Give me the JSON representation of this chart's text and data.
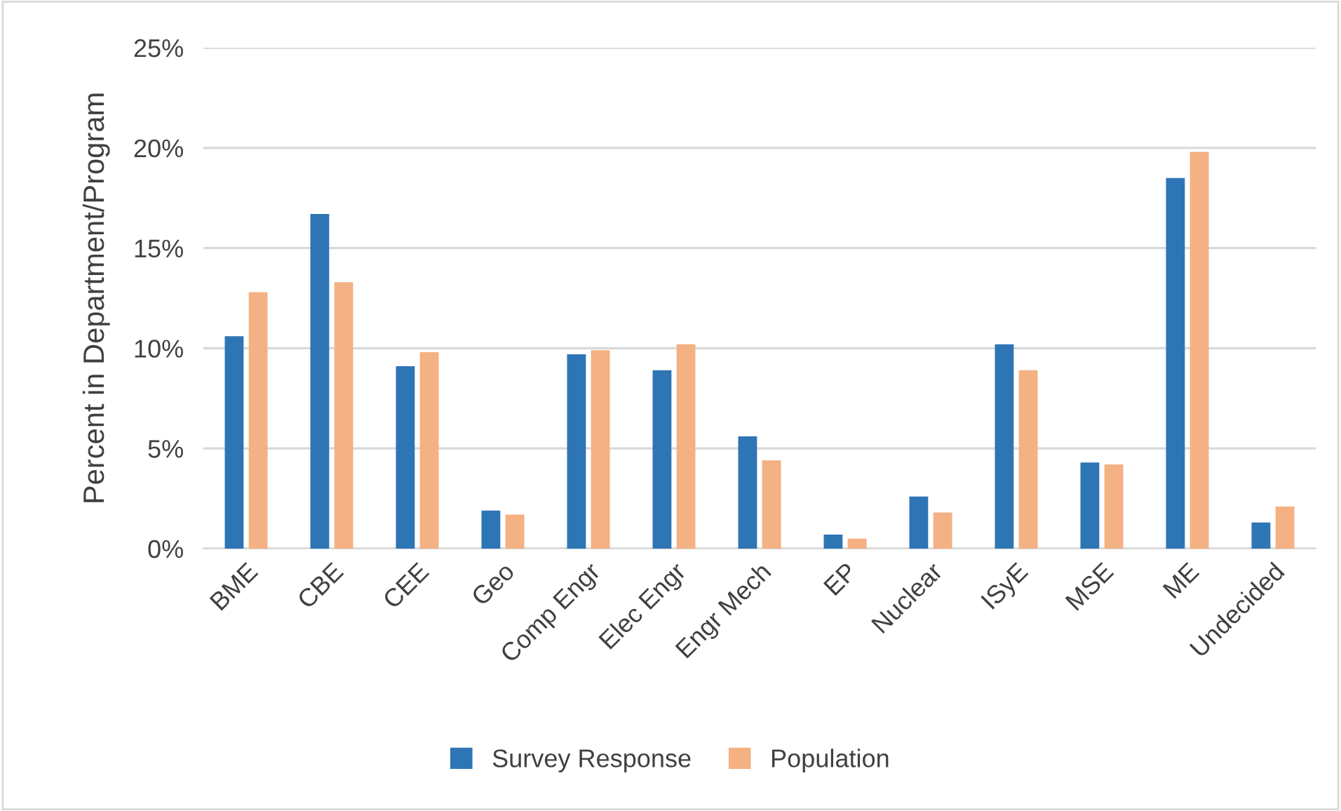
{
  "chart_data": {
    "type": "bar",
    "ylabel": "Percent in Department/Program",
    "categories": [
      "BME",
      "CBE",
      "CEE",
      "Geo",
      "Comp Engr",
      "Elec Engr",
      "Engr Mech",
      "EP",
      "Nuclear",
      "ISyE",
      "MSE",
      "ME",
      "Undecided"
    ],
    "series": [
      {
        "name": "Survey Response",
        "color": "#2e75b6",
        "values": [
          10.6,
          16.7,
          9.1,
          1.9,
          9.7,
          8.9,
          5.6,
          0.7,
          2.6,
          10.2,
          4.3,
          18.5,
          1.3
        ]
      },
      {
        "name": "Population",
        "color": "#f4b183",
        "values": [
          12.8,
          13.3,
          9.8,
          1.7,
          9.9,
          10.2,
          4.4,
          0.5,
          1.8,
          8.9,
          4.2,
          19.8,
          2.1
        ]
      }
    ],
    "ylim": [
      0,
      25
    ],
    "yticks": [
      {
        "value": 0,
        "label": "0%"
      },
      {
        "value": 5,
        "label": "5%"
      },
      {
        "value": 10,
        "label": "10%"
      },
      {
        "value": 15,
        "label": "15%"
      },
      {
        "value": 20,
        "label": "20%"
      },
      {
        "value": 25,
        "label": "25%"
      }
    ],
    "grid": "y",
    "legend": "bottom"
  }
}
